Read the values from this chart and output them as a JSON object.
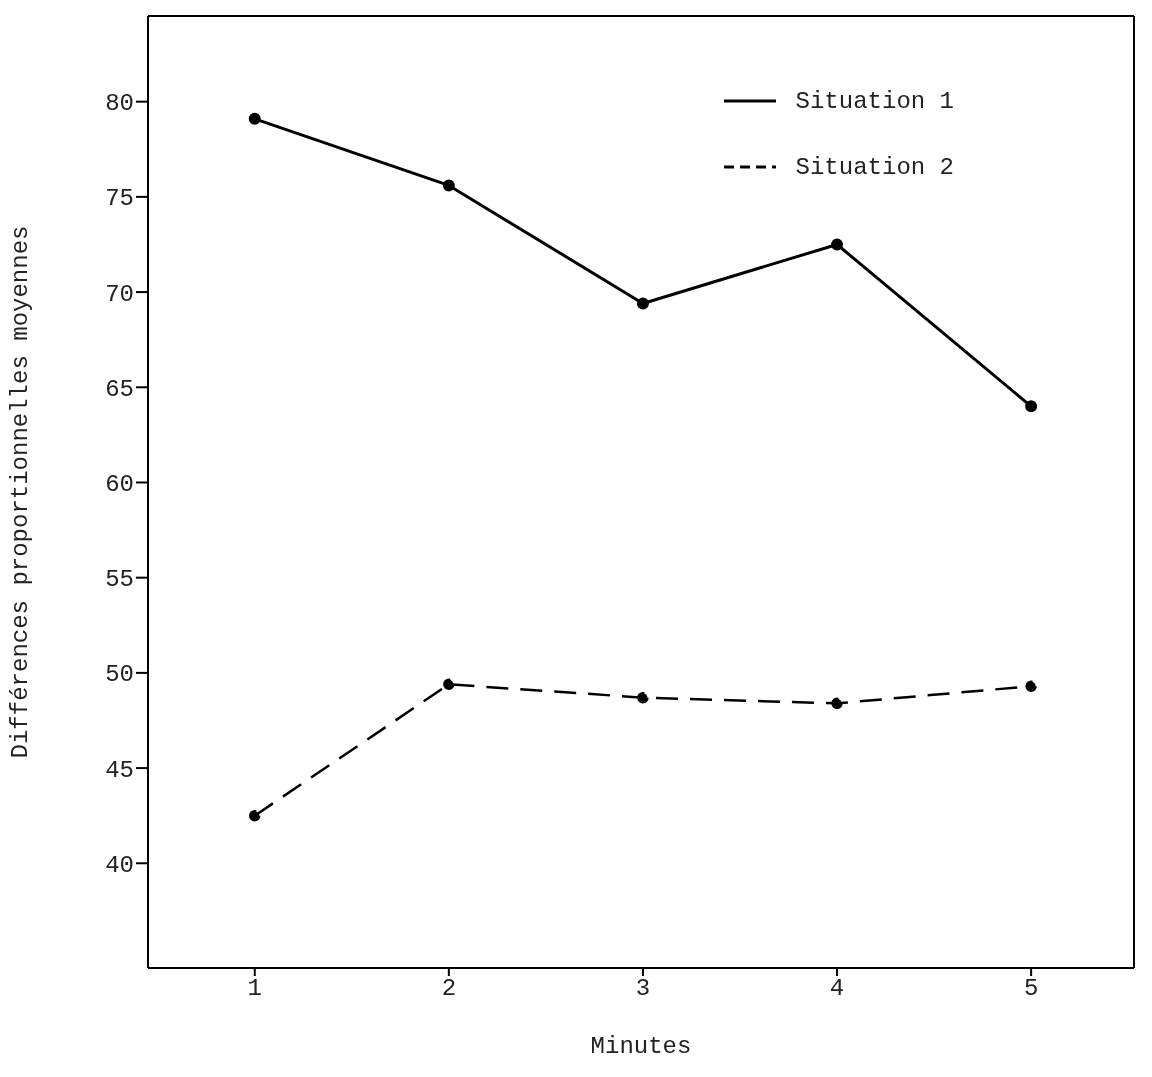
{
  "chart_data": {
    "type": "line",
    "xlabel": "Minutes",
    "ylabel": "Différences proportionnelles moyennes",
    "x": [
      1,
      2,
      3,
      4,
      5
    ],
    "series": [
      {
        "name": "Situation 1",
        "color": "#000000",
        "values": [
          79.1,
          75.6,
          69.4,
          72.5,
          64.0
        ],
        "line_style": "solid"
      },
      {
        "name": "Situation 2",
        "color": "#000000",
        "values": [
          42.5,
          49.4,
          48.7,
          48.4,
          49.3
        ],
        "line_style": "dashed"
      }
    ],
    "xlim": [
      0.45,
      5.53
    ],
    "xticks": [
      1,
      2,
      3,
      4,
      5
    ],
    "ylim": [
      34.5,
      84.5
    ],
    "yticks": [
      40,
      45,
      50,
      55,
      60,
      65,
      70,
      75,
      80
    ],
    "grid": false,
    "legend": "top right",
    "marker": "circle"
  }
}
